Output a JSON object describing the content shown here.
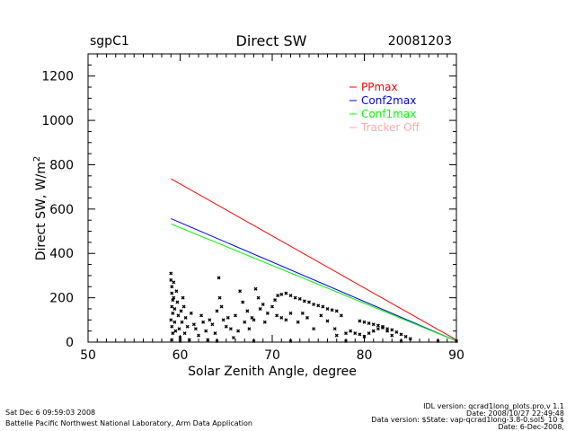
{
  "chart_data": {
    "type": "scatter",
    "title": "Direct SW",
    "site_label": "sgpC1",
    "date_label": "20081203",
    "xlabel": "Solar Zenith Angle, degree",
    "ylabel": "Direct SW, W/m",
    "ylabel_sup": "2",
    "xlim": [
      50,
      90
    ],
    "ylim": [
      0,
      1300
    ],
    "xticks": [
      50,
      60,
      70,
      80,
      90
    ],
    "yticks": [
      0,
      200,
      400,
      600,
      800,
      1000,
      1200
    ],
    "legend_placement": "top-right",
    "legend": [
      {
        "label": "PPmax",
        "color": "#ff0000"
      },
      {
        "label": "Conf2max",
        "color": "#0000ff"
      },
      {
        "label": "Conf1max",
        "color": "#00ff00"
      },
      {
        "label": "Tracker Off",
        "color": "#ffaaaa"
      }
    ],
    "lines": [
      {
        "name": "PPmax",
        "color": "#ff0000",
        "x": [
          59,
          90
        ],
        "y": [
          737,
          10
        ]
      },
      {
        "name": "Conf2max",
        "color": "#0000ff",
        "x": [
          59,
          90
        ],
        "y": [
          557,
          5
        ]
      },
      {
        "name": "Conf1max",
        "color": "#00ff00",
        "x": [
          59,
          90
        ],
        "y": [
          533,
          5
        ]
      }
    ],
    "points": [
      [
        59,
        310
      ],
      [
        59,
        280
      ],
      [
        59.1,
        250
      ],
      [
        59.1,
        220
      ],
      [
        59.2,
        190
      ],
      [
        59.1,
        160
      ],
      [
        59.2,
        130
      ],
      [
        59,
        100
      ],
      [
        59.1,
        70
      ],
      [
        59.2,
        40
      ],
      [
        59.1,
        10
      ],
      [
        59.3,
        270
      ],
      [
        59.3,
        200
      ],
      [
        59.4,
        150
      ],
      [
        59.4,
        90
      ],
      [
        59.5,
        50
      ],
      [
        59.6,
        230
      ],
      [
        59.7,
        180
      ],
      [
        59.8,
        120
      ],
      [
        59.9,
        60
      ],
      [
        60,
        20
      ],
      [
        60.1,
        140
      ],
      [
        60.2,
        90
      ],
      [
        60.3,
        200
      ],
      [
        60.4,
        160
      ],
      [
        60.5,
        40
      ],
      [
        60.6,
        110
      ],
      [
        60.8,
        70
      ],
      [
        61,
        10
      ],
      [
        61.2,
        130
      ],
      [
        61.5,
        80
      ],
      [
        61.7,
        60
      ],
      [
        62,
        30
      ],
      [
        62.3,
        120
      ],
      [
        62.5,
        90
      ],
      [
        62.8,
        50
      ],
      [
        63,
        10
      ],
      [
        63.2,
        100
      ],
      [
        63.5,
        80
      ],
      [
        63.8,
        40
      ],
      [
        64,
        140
      ],
      [
        64.2,
        290
      ],
      [
        64.3,
        200
      ],
      [
        64.5,
        160
      ],
      [
        64.7,
        100
      ],
      [
        65,
        70
      ],
      [
        65.2,
        110
      ],
      [
        65.5,
        60
      ],
      [
        65.8,
        20
      ],
      [
        66,
        120
      ],
      [
        66.3,
        50
      ],
      [
        66.5,
        230
      ],
      [
        66.8,
        180
      ],
      [
        67,
        90
      ],
      [
        67.3,
        140
      ],
      [
        67.5,
        60
      ],
      [
        67.8,
        110
      ],
      [
        68,
        100
      ],
      [
        68.2,
        240
      ],
      [
        68.5,
        200
      ],
      [
        68.7,
        150
      ],
      [
        69,
        170
      ],
      [
        69.2,
        90
      ],
      [
        69.5,
        130
      ],
      [
        70,
        160
      ],
      [
        70.3,
        190
      ],
      [
        70.6,
        210
      ],
      [
        71,
        215
      ],
      [
        71.5,
        220
      ],
      [
        72,
        210
      ],
      [
        72.5,
        200
      ],
      [
        73,
        195
      ],
      [
        73.5,
        185
      ],
      [
        74,
        180
      ],
      [
        74.5,
        170
      ],
      [
        75,
        165
      ],
      [
        75.5,
        160
      ],
      [
        76,
        150
      ],
      [
        76.5,
        145
      ],
      [
        77,
        140
      ],
      [
        77.5,
        120
      ],
      [
        70.5,
        120
      ],
      [
        71,
        110
      ],
      [
        71.5,
        100
      ],
      [
        72,
        130
      ],
      [
        72.8,
        90
      ],
      [
        73.3,
        130
      ],
      [
        73.8,
        110
      ],
      [
        74.5,
        60
      ],
      [
        75.3,
        120
      ],
      [
        76,
        95
      ],
      [
        76.8,
        60
      ],
      [
        77,
        30
      ],
      [
        78,
        40
      ],
      [
        78.5,
        50
      ],
      [
        79,
        40
      ],
      [
        79.5,
        35
      ],
      [
        80,
        25
      ],
      [
        80.5,
        40
      ],
      [
        81,
        50
      ],
      [
        81.5,
        60
      ],
      [
        82,
        70
      ],
      [
        82.5,
        50
      ],
      [
        83,
        30
      ],
      [
        79.5,
        95
      ],
      [
        80,
        90
      ],
      [
        80.5,
        85
      ],
      [
        81,
        80
      ],
      [
        81.5,
        75
      ],
      [
        82,
        65
      ],
      [
        82.5,
        60
      ],
      [
        83,
        55
      ],
      [
        83.5,
        45
      ],
      [
        84,
        35
      ],
      [
        84.5,
        25
      ],
      [
        85,
        15
      ],
      [
        60,
        0
      ],
      [
        64,
        0
      ],
      [
        68,
        0
      ],
      [
        72,
        0
      ],
      [
        78,
        0
      ],
      [
        84,
        0
      ],
      [
        88,
        0
      ],
      [
        90,
        0
      ]
    ]
  },
  "footer": {
    "run_time": "Sat Dec  6 09:59:03 2008",
    "org": "Battelle Pacific Northwest National Laboratory, Arm Data Application",
    "idl_version": "IDL version: qcrad1long_plots.pro,v 1.1",
    "idl_date": "Date: 2008/10/27 22:49:48",
    "data_version": "Data version: $State: vap-qcrad1long-3.8-0.sol5_10 $",
    "data_date": "Date: 6-Dec-2008,"
  }
}
